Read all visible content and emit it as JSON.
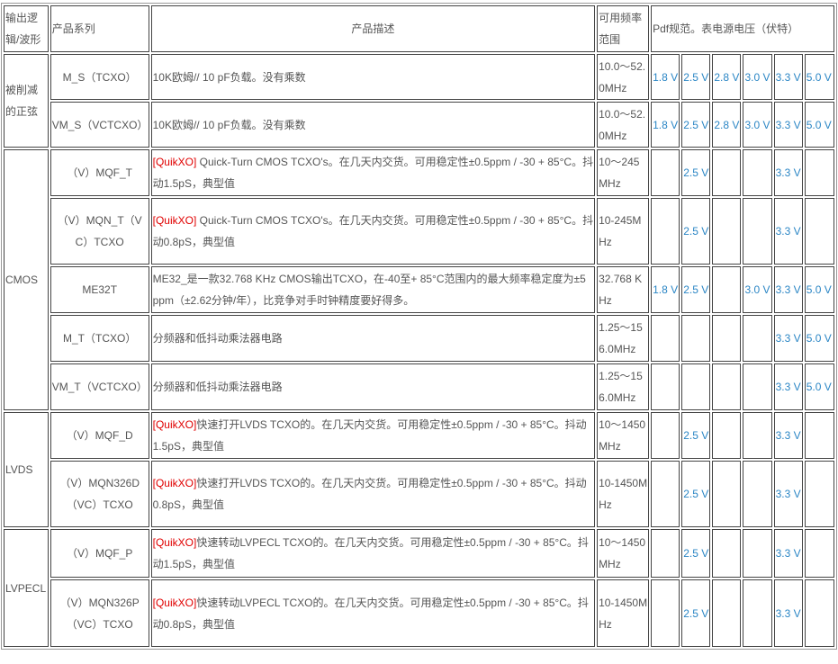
{
  "header": {
    "logic": "输出逻辑/波形",
    "series": "产品系列",
    "description": "产品描述",
    "freq": "可用频率范围",
    "voltage": "Pdf规范。表电源电压（伏特）"
  },
  "colors": {
    "voltage": "#2b86c5",
    "tag": "#e00000",
    "text": "#555555"
  },
  "groups": [
    {
      "logic": "被削减的正弦",
      "rows": [
        {
          "series": "M_S（TCXO）",
          "tag": "",
          "desc": "10K欧姆// 10 pF负载。没有乘数",
          "freq": "10.0～52.0MHz",
          "volts": [
            "1.8 V",
            "2.5 V",
            "2.8 V",
            "3.0 V",
            "3.3 V",
            "5.0 V"
          ]
        },
        {
          "series": "VM_S（VCTCXO）",
          "tag": "",
          "desc": "10K欧姆// 10 pF负载。没有乘数",
          "freq": "10.0～52.0MHz",
          "volts": [
            "1.8 V",
            "2.5 V",
            "2.8 V",
            "3.0 V",
            "3.3 V",
            "5.0 V"
          ]
        }
      ]
    },
    {
      "logic": "CMOS",
      "rows": [
        {
          "series": "（V）MQF_T",
          "tag": "[QuikXO]",
          "desc": " Quick-Turn CMOS TCXO's。在几天内交货。可用稳定性±0.5ppm / -30 + 85°C。抖动1.5pS，典型值",
          "freq": "10～245MHz",
          "volts": [
            "",
            "2.5 V",
            "",
            "",
            "3.3 V",
            ""
          ]
        },
        {
          "series": "（V）MQN_T（VC）TCXO",
          "tag": "[QuikXO]",
          "desc": " Quick-Turn CMOS TCXO's。在几天内交货。可用稳定性±0.5ppm / -30 + 85°C。抖动0.8pS，典型值",
          "freq": "10-245MHz",
          "volts": [
            "",
            "2.5 V",
            "",
            "",
            "3.3 V",
            ""
          ]
        },
        {
          "series": "ME32T",
          "tag": "",
          "desc": "ME32_是一款32.768 KHz CMOS输出TCXO，在-40至+ 85°C范围内的最大频率稳定度为±5 ppm（±2.62分钟/年），比竞争对手时钟精度要好得多。",
          "freq": "32.768 KHz",
          "volts": [
            "1.8 V",
            "2.5 V",
            "",
            "3.0 V",
            "3.3 V",
            "5.0 V"
          ]
        },
        {
          "series": "M_T（TCXO）",
          "tag": "",
          "desc": "分频器和低抖动乘法器电路",
          "freq": "1.25～156.0MHz",
          "volts": [
            "",
            "",
            "",
            "",
            "3.3 V",
            "5.0 V"
          ]
        },
        {
          "series": "VM_T（VCTCXO）",
          "tag": "",
          "desc": "分频器和低抖动乘法器电路",
          "freq": "1.25～156.0MHz",
          "volts": [
            "",
            "",
            "",
            "",
            "3.3 V",
            "5.0 V"
          ]
        }
      ]
    },
    {
      "logic": "LVDS",
      "rows": [
        {
          "series": "（V）MQF_D",
          "tag": "[QuikXO]",
          "desc": "快速打开LVDS TCXO的。在几天内交货。可用稳定性±0.5ppm / -30 + 85°C。抖动1.5pS，典型值",
          "freq": "10～1450 MHz",
          "volts": [
            "",
            "2.5 V",
            "",
            "",
            "3.3 V",
            ""
          ]
        },
        {
          "series": "（V）MQN326D（VC）TCXO",
          "tag": "[QuikXO]",
          "desc": "快速打开LVDS TCXO的。在几天内交货。可用稳定性±0.5ppm / -30 + 85°C。抖动0.8pS，典型值",
          "freq": "10-1450MHz",
          "volts": [
            "",
            "2.5 V",
            "",
            "",
            "3.3 V",
            ""
          ]
        }
      ]
    },
    {
      "logic": "LVPECL",
      "rows": [
        {
          "series": "（V）MQF_P",
          "tag": "[QuikXO]",
          "desc": "快速转动LVPECL TCXO的。在几天内交货。可用稳定性±0.5ppm / -30 + 85°C。抖动1.5pS，典型值",
          "freq": "10～1450 MHz",
          "volts": [
            "",
            "2.5 V",
            "",
            "",
            "3.3 V",
            ""
          ]
        },
        {
          "series": "（V）MQN326P（VC）TCXO",
          "tag": "[QuikXO]",
          "desc": "快速转动LVPECL TCXO的。在几天内交货。可用稳定性±0.5ppm / -30 + 85°C。抖动0.8pS，典型值",
          "freq": "10-1450MHz",
          "volts": [
            "",
            "2.5 V",
            "",
            "",
            "3.3 V",
            ""
          ]
        }
      ]
    }
  ]
}
